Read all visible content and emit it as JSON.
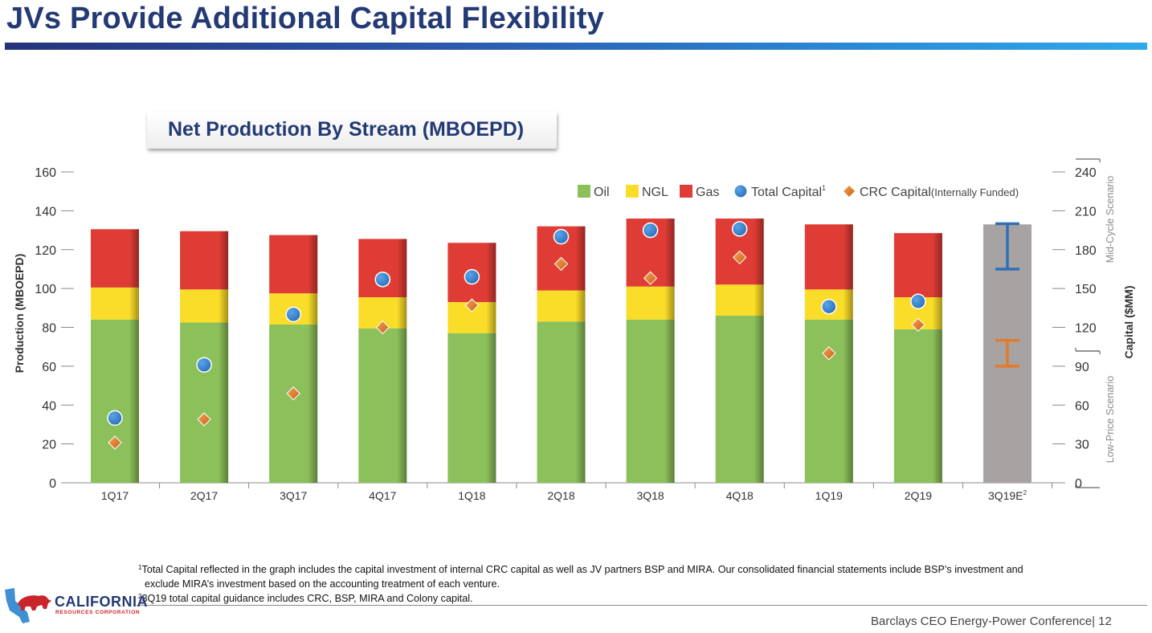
{
  "header": {
    "title": "JVs Provide Additional Capital Flexibility"
  },
  "chart_title": "Net Production By Stream (MBOEPD)",
  "colors": {
    "oil": "#8cc05a",
    "ngl": "#fadd28",
    "gas": "#e03c36",
    "estimate_bar": "#a7a3a3",
    "total_capital": "#2c6fba",
    "crc_capital": "#e57a28",
    "mid_cycle_range": "#2f6fb4",
    "low_price_range": "#e57a28",
    "title_blue": "#233a74"
  },
  "chart_data": {
    "type": "bar",
    "title": "Net Production By Stream (MBOEPD)",
    "categories": [
      "1Q17",
      "2Q17",
      "3Q17",
      "4Q17",
      "1Q18",
      "2Q18",
      "3Q18",
      "4Q18",
      "1Q19",
      "2Q19",
      "3Q19E"
    ],
    "category_superscripts": [
      "",
      "",
      "",
      "",
      "",
      "",
      "",
      "",
      "",
      "",
      "2"
    ],
    "ylabel": "Production (MBOEPD)",
    "ylim": [
      0,
      160
    ],
    "yticks": [
      "0",
      "20",
      "40",
      "60",
      "80",
      "100",
      "120",
      "140",
      "160"
    ],
    "y2label": "Capital ($MM)",
    "y2lim": [
      0,
      240
    ],
    "y2ticks": [
      "0",
      "30",
      "60",
      "90",
      "120",
      "150",
      "180",
      "210",
      "240"
    ],
    "scenario_labels": {
      "mid_cycle": "Mid-Cycle Scenario",
      "low_price": "Low-Price Scenario"
    },
    "legend": [
      {
        "key": "oil",
        "label": "Oil"
      },
      {
        "key": "ngl",
        "label": "NGL"
      },
      {
        "key": "gas",
        "label": "Gas"
      },
      {
        "key": "total_capital",
        "label": "Total Capital",
        "superscript": "1"
      },
      {
        "key": "crc_capital",
        "label": "CRC Capital",
        "note": "(Internally Funded)"
      }
    ],
    "series": [
      {
        "name": "Oil",
        "axis": "production",
        "values": [
          84,
          82.5,
          81.5,
          79.5,
          77,
          83,
          84,
          86,
          84,
          79,
          null
        ]
      },
      {
        "name": "NGL",
        "axis": "production",
        "values": [
          16.5,
          17,
          16,
          16,
          16,
          16,
          17,
          16,
          15.5,
          16.5,
          null
        ]
      },
      {
        "name": "Gas",
        "axis": "production",
        "values": [
          30,
          30,
          30,
          30,
          30.5,
          33,
          35,
          34,
          33.5,
          33,
          null
        ]
      },
      {
        "name": "Total Capital",
        "axis": "capital",
        "values": [
          50,
          91,
          130,
          157,
          159,
          190,
          195,
          196,
          136,
          140,
          null
        ]
      },
      {
        "name": "CRC Capital",
        "axis": "capital",
        "values": [
          31,
          49,
          69,
          120,
          137,
          169,
          158,
          174,
          100,
          122,
          null
        ]
      }
    ],
    "estimate": {
      "category": "3Q19E",
      "production_total": 133,
      "mid_cycle_capital_range": [
        165,
        200
      ],
      "low_price_capital_range": [
        90,
        110
      ]
    }
  },
  "footnotes": {
    "note1_mark": "1",
    "note1_line1": "Total Capital reflected in the graph includes the capital investment of internal CRC capital as well as JV partners BSP and MIRA.  Our consolidated financial statements include BSP’s investment and",
    "note1_line2": "exclude MIRA’s investment based on the accounting treatment of each venture.",
    "note2_mark": "2",
    "note2": "3Q19 total capital guidance includes CRC, BSP, MIRA and Colony capital."
  },
  "footer": {
    "conference": "Barclays CEO Energy-Power Conference| 12"
  },
  "logo": {
    "name": "CALIFORNIA",
    "subtitle": "RESOURCES CORPORATION"
  }
}
